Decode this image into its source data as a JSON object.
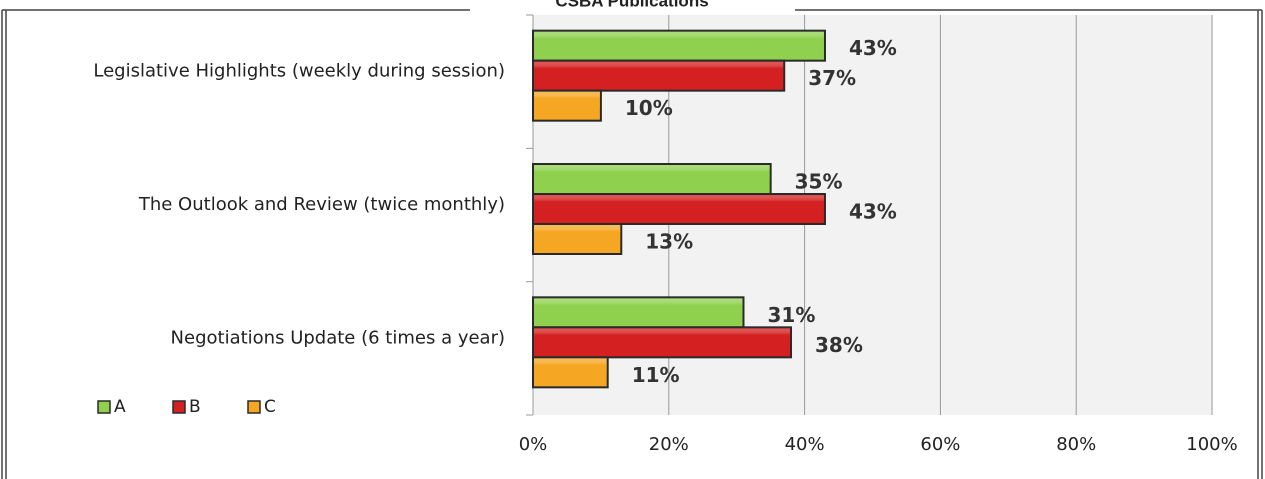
{
  "chart_data": {
    "type": "bar",
    "orientation": "horizontal",
    "title": "CSBA Publications",
    "categories": [
      "Legislative Highlights (weekly during session)",
      "The Outlook and Review (twice monthly)",
      "Negotiations Update (6 times a year)"
    ],
    "series": [
      {
        "name": "A",
        "color": "#8fd14f",
        "values": [
          43,
          35,
          31
        ],
        "value_labels": [
          "43%",
          "35%",
          "31%"
        ]
      },
      {
        "name": "B",
        "color": "#d42020",
        "values": [
          37,
          43,
          38
        ],
        "value_labels": [
          "37%",
          "43%",
          "38%"
        ]
      },
      {
        "name": "C",
        "color": "#f5a623",
        "values": [
          10,
          13,
          11
        ],
        "value_labels": [
          "10%",
          "13%",
          "11%"
        ]
      }
    ],
    "xlim": [
      0,
      100
    ],
    "xticks": [
      {
        "value": 0,
        "label": "0%"
      },
      {
        "value": 20,
        "label": "20%"
      },
      {
        "value": 40,
        "label": "40%"
      },
      {
        "value": 60,
        "label": "60%"
      },
      {
        "value": 80,
        "label": "80%"
      },
      {
        "value": 100,
        "label": "100%"
      }
    ],
    "grid": true,
    "legend": "bottom-left"
  }
}
